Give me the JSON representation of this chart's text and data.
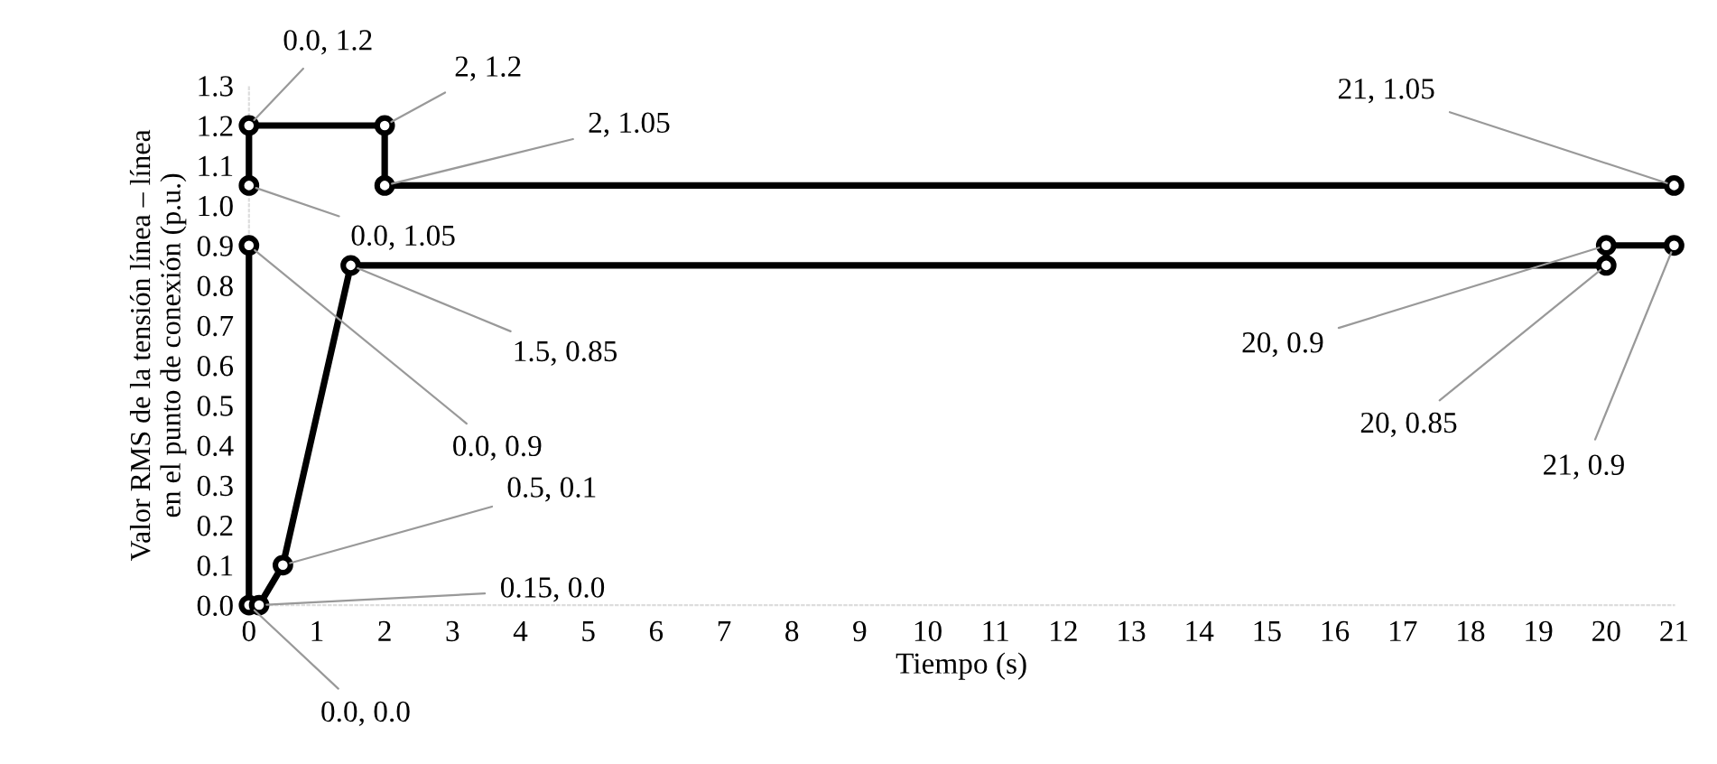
{
  "chart_data": {
    "type": "line",
    "xlabel": "Tiempo (s)",
    "ylabel": "Valor RMS de la tensión línea – línea\nen el punto de conexión (p.u.)",
    "series": [
      {
        "color": "#000000",
        "x": [
          0,
          0,
          2,
          2,
          21
        ],
        "values": [
          1.05,
          1.2,
          1.2,
          1.05,
          1.05
        ]
      },
      {
        "color": "#000000",
        "x": [
          0,
          0,
          0.15,
          0.5,
          1.5,
          20,
          20,
          21
        ],
        "values": [
          0.9,
          0,
          0,
          0.1,
          0.85,
          0.85,
          0.9,
          0.9
        ]
      }
    ],
    "xlim": [
      0,
      21
    ],
    "xticks": [
      0,
      1,
      2,
      3,
      4,
      5,
      6,
      7,
      8,
      9,
      10,
      11,
      12,
      13,
      14,
      15,
      16,
      17,
      18,
      19,
      20,
      21
    ],
    "ylim": [
      0,
      1.3
    ],
    "yticks": [
      {
        "value": 0,
        "label": "0.0"
      },
      {
        "value": 0.1,
        "label": "0.1"
      },
      {
        "value": 0.2,
        "label": "0.2"
      },
      {
        "value": 0.3,
        "label": "0.3"
      },
      {
        "value": 0.4,
        "label": "0.4"
      },
      {
        "value": 0.5,
        "label": "0.5"
      },
      {
        "value": 0.6,
        "label": "0.6"
      },
      {
        "value": 0.7,
        "label": "0.7"
      },
      {
        "value": 0.8,
        "label": "0.8"
      },
      {
        "value": 0.9,
        "label": "0.9"
      },
      {
        "value": 1,
        "label": "1.0"
      },
      {
        "value": 1.1,
        "label": "1.1"
      },
      {
        "value": 1.2,
        "label": "1.2"
      },
      {
        "value": 1.3,
        "label": "1.3"
      }
    ],
    "marker": "circle",
    "line_style": "solid",
    "grid": false,
    "legend": false,
    "annotations": [
      {
        "text": "0.0, 1.2",
        "x": 0,
        "y": 1.2
      },
      {
        "text": "2, 1.2",
        "x": 2,
        "y": 1.2
      },
      {
        "text": "2, 1.05",
        "x": 2,
        "y": 1.05
      },
      {
        "text": "0.0, 1.05",
        "x": 0,
        "y": 1.05
      },
      {
        "text": "1.5, 0.85",
        "x": 1.5,
        "y": 0.85
      },
      {
        "text": "0.0, 0.9",
        "x": 0,
        "y": 0.9
      },
      {
        "text": "0.5, 0.1",
        "x": 0.5,
        "y": 0.1
      },
      {
        "text": "0.15, 0.0",
        "x": 0.15,
        "y": 0
      },
      {
        "text": "0.0, 0.0",
        "x": 0,
        "y": 0
      },
      {
        "text": "21, 1.05",
        "x": 21,
        "y": 1.05
      },
      {
        "text": "20, 0.9",
        "x": 20,
        "y": 0.9
      },
      {
        "text": "20, 0.85",
        "x": 20,
        "y": 0.85
      },
      {
        "text": "21, 0.9",
        "x": 21,
        "y": 0.9
      }
    ]
  }
}
